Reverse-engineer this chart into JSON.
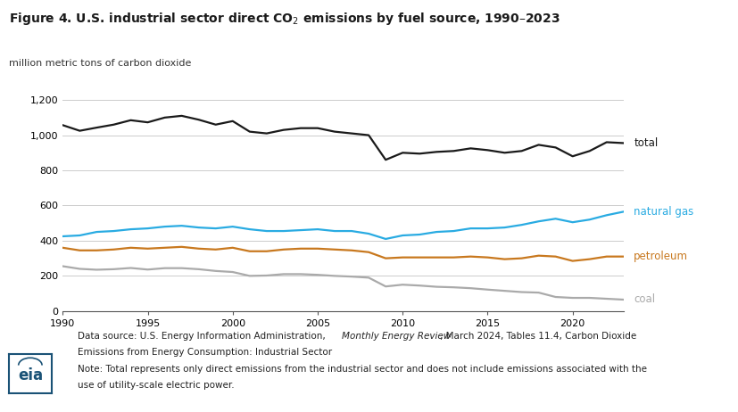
{
  "title_part1": "Figure 4. U.S. industrial sector direct CO",
  "title_sub": "2",
  "title_part2": " emissions by fuel source, 1990–2023",
  "ylabel": "million metric tons of carbon dioxide",
  "years": [
    1990,
    1991,
    1992,
    1993,
    1994,
    1995,
    1996,
    1997,
    1998,
    1999,
    2000,
    2001,
    2002,
    2003,
    2004,
    2005,
    2006,
    2007,
    2008,
    2009,
    2010,
    2011,
    2012,
    2013,
    2014,
    2015,
    2016,
    2017,
    2018,
    2019,
    2020,
    2021,
    2022,
    2023
  ],
  "total": [
    1057,
    1025,
    1043,
    1060,
    1085,
    1073,
    1100,
    1110,
    1088,
    1060,
    1080,
    1020,
    1010,
    1030,
    1040,
    1040,
    1020,
    1010,
    1000,
    860,
    900,
    895,
    905,
    910,
    925,
    915,
    900,
    910,
    945,
    930,
    880,
    910,
    960,
    955
  ],
  "natural_gas": [
    425,
    430,
    450,
    455,
    465,
    470,
    480,
    485,
    475,
    470,
    480,
    465,
    455,
    455,
    460,
    465,
    455,
    455,
    440,
    410,
    430,
    435,
    450,
    455,
    470,
    470,
    475,
    490,
    510,
    525,
    505,
    520,
    545,
    565
  ],
  "petroleum": [
    360,
    345,
    345,
    350,
    360,
    355,
    360,
    365,
    355,
    350,
    360,
    340,
    340,
    350,
    355,
    355,
    350,
    345,
    335,
    300,
    305,
    305,
    305,
    305,
    310,
    305,
    295,
    300,
    315,
    310,
    285,
    295,
    310,
    310
  ],
  "coal": [
    255,
    240,
    235,
    238,
    245,
    236,
    244,
    244,
    238,
    228,
    222,
    200,
    202,
    210,
    210,
    206,
    200,
    196,
    190,
    140,
    150,
    145,
    138,
    135,
    130,
    122,
    115,
    108,
    105,
    80,
    75,
    75,
    70,
    65
  ],
  "total_color": "#1a1a1a",
  "natural_gas_color": "#29abe2",
  "petroleum_color": "#c8781e",
  "coal_color": "#aaaaaa",
  "ylim": [
    0,
    1300
  ],
  "yticks": [
    0,
    200,
    400,
    600,
    800,
    1000,
    1200
  ],
  "ytick_labels": [
    "0",
    "200",
    "400",
    "600",
    "800",
    "1,000",
    "1,200"
  ],
  "bg_color": "#ffffff",
  "grid_color": "#cccccc"
}
